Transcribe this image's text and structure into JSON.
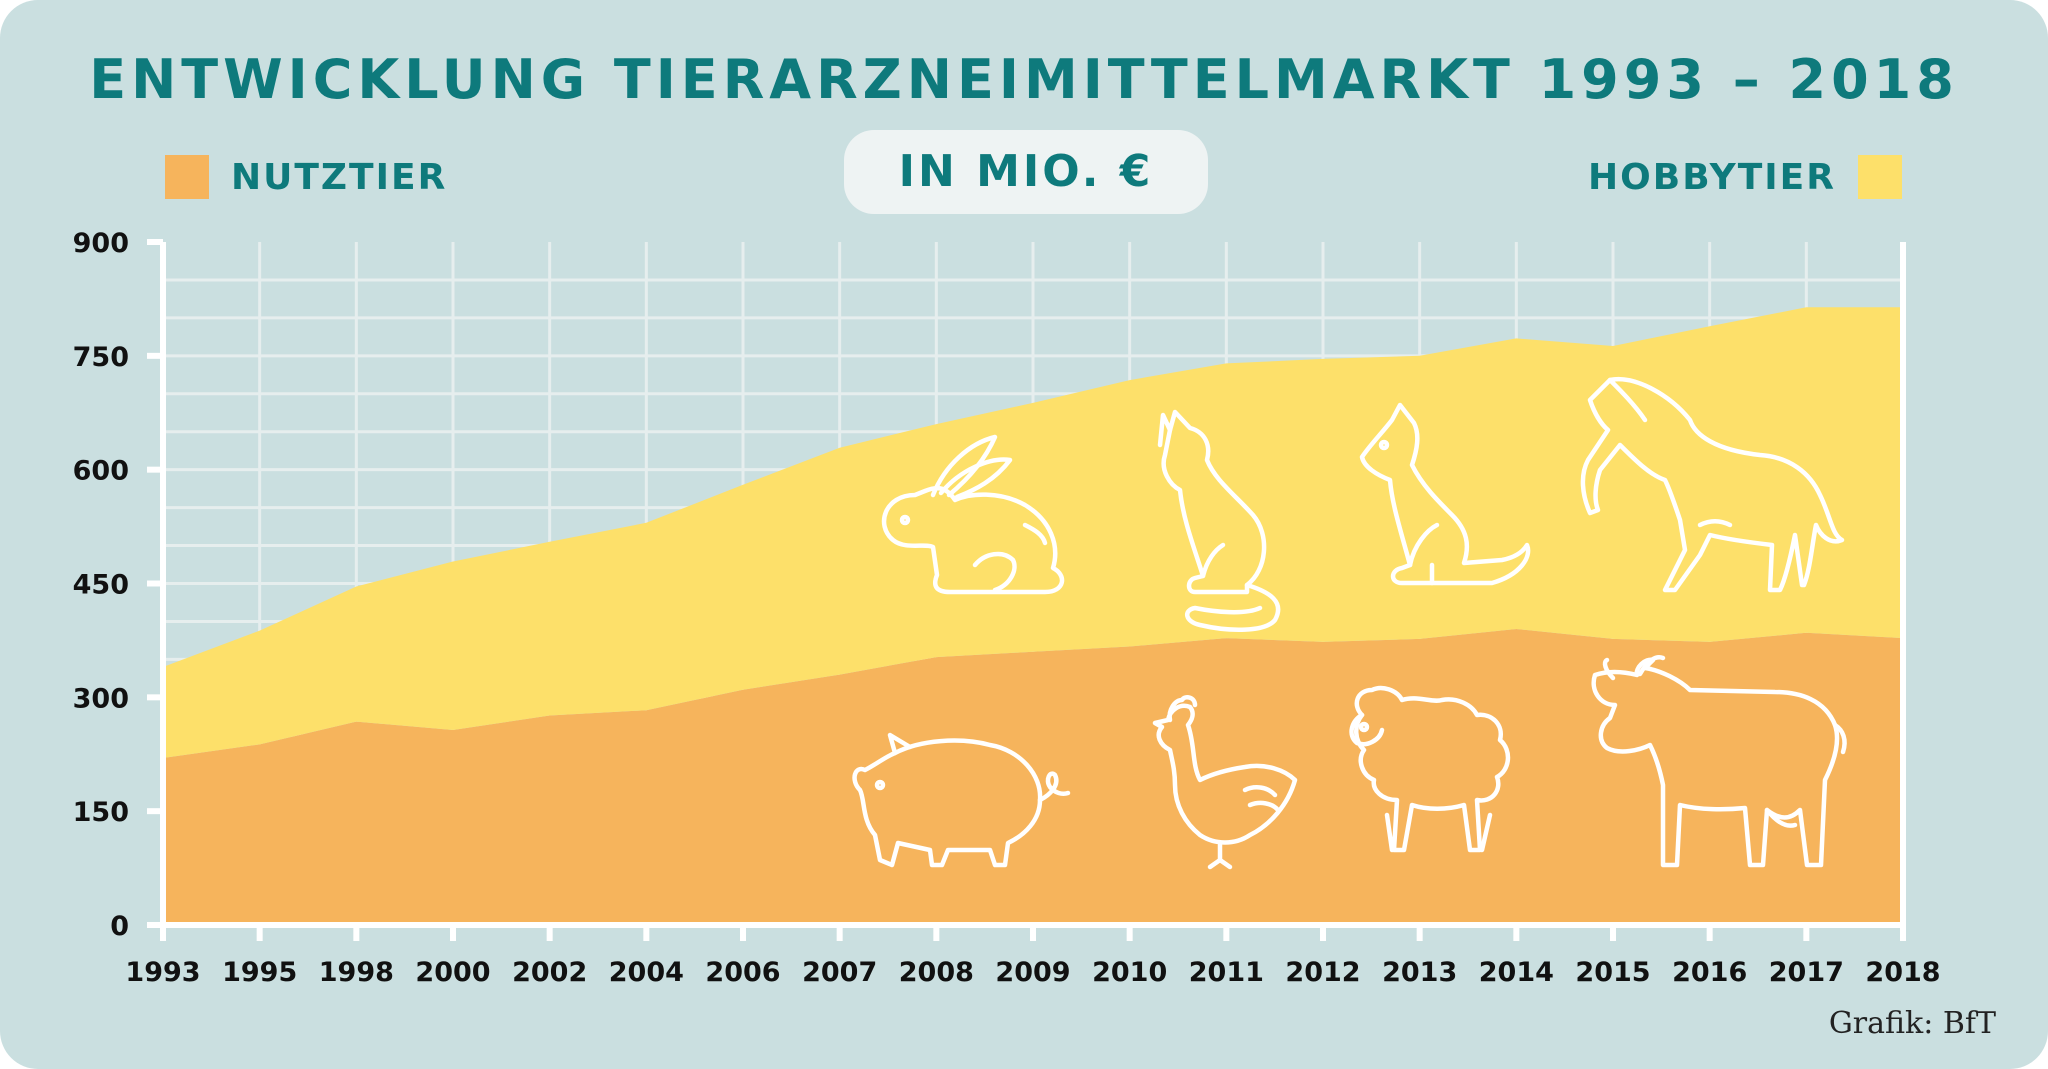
{
  "title": "ENTWICKLUNG TIERARZNEIMITTELMARKT 1993 – 2018",
  "unit_label": "IN MIO. €",
  "legend": {
    "left_label": "NUTZTIER",
    "right_label": "HOBBYTIER"
  },
  "credit": "Grafik: BfT",
  "colors": {
    "background": "#cadfe0",
    "nutztier": "#f6b45c",
    "hobbytier": "#fde06a",
    "accent_text": "#0e7a7c",
    "grid": "#e6eeee"
  },
  "icons": {
    "hobbytier": [
      "rabbit-icon",
      "cat-icon",
      "dog-icon",
      "horse-icon"
    ],
    "nutztier": [
      "pig-icon",
      "chicken-icon",
      "sheep-icon",
      "cow-icon"
    ]
  },
  "chart_data": {
    "type": "area",
    "stacked": true,
    "x": [
      "1993",
      "1995",
      "1998",
      "2000",
      "2002",
      "2004",
      "2006",
      "2007",
      "2008",
      "2009",
      "2010",
      "2011",
      "2012",
      "2013",
      "2014",
      "2015",
      "2016",
      "2017",
      "2018"
    ],
    "series": [
      {
        "name": "NUTZTIER",
        "color": "#f6b45c",
        "values": [
          220,
          238,
          268,
          257,
          276,
          283,
          310,
          330,
          353,
          360,
          367,
          378,
          373,
          377,
          390,
          377,
          373,
          385,
          378
        ]
      },
      {
        "name": "HOBBYTIER",
        "color": "#fde06a",
        "values": [
          120,
          150,
          178,
          222,
          229,
          247,
          270,
          299,
          307,
          328,
          351,
          362,
          373,
          373,
          383,
          386,
          416,
          429,
          436
        ]
      }
    ],
    "totals": [
      340,
      388,
      446,
      479,
      505,
      530,
      580,
      629,
      660,
      688,
      718,
      740,
      746,
      750,
      773,
      763,
      789,
      814,
      814
    ],
    "yticks": [
      "0",
      "150",
      "300",
      "450",
      "600",
      "750",
      "900"
    ],
    "ylim": [
      0,
      900
    ],
    "grid": true
  }
}
